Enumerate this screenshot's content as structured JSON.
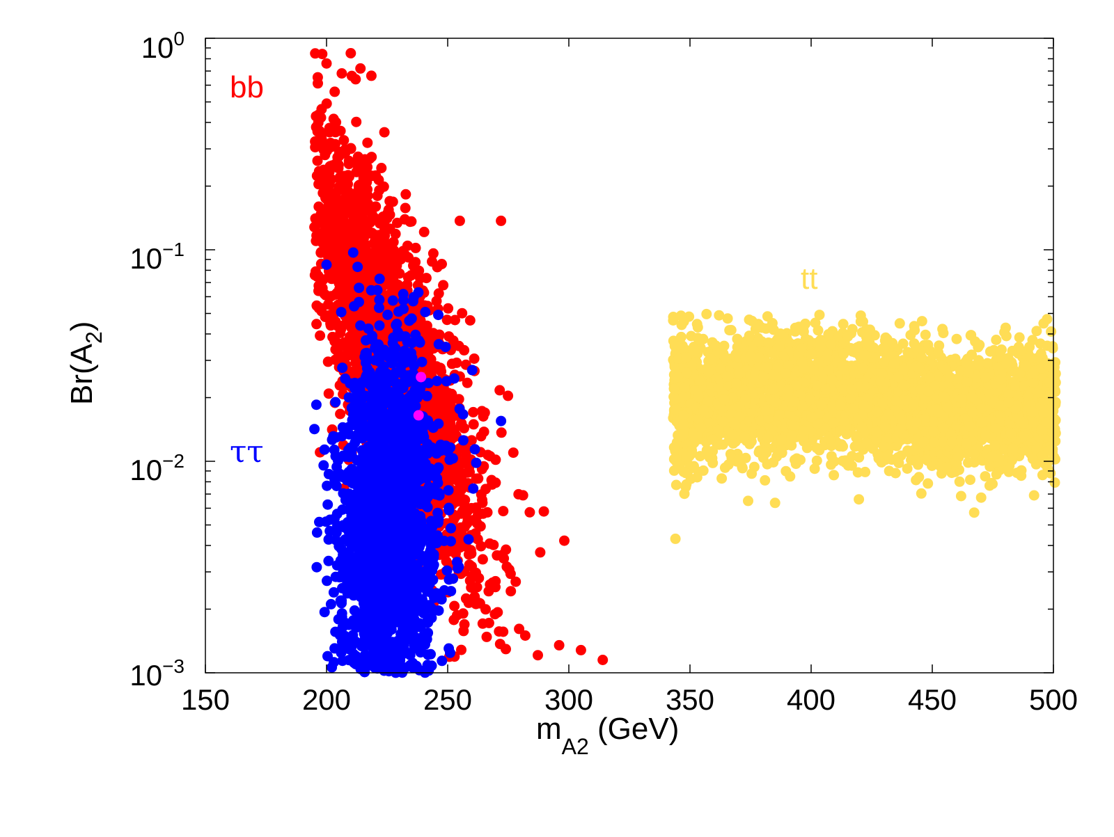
{
  "chart_data": {
    "type": "scatter",
    "title": "",
    "xlabel": {
      "main": "m",
      "sub": "A2",
      "suffix": " (GeV)"
    },
    "ylabel": {
      "main": "Br(A",
      "sub": "2",
      "suffix": ")"
    },
    "xlim": [
      150,
      500
    ],
    "ylim": [
      0.001,
      1
    ],
    "yscale": "log",
    "x_ticks": [
      "150",
      "200",
      "250",
      "300",
      "350",
      "400",
      "450",
      "500"
    ],
    "x_tick_values": [
      150,
      200,
      250,
      300,
      350,
      400,
      450,
      500
    ],
    "y_ticks": [
      {
        "value": 1,
        "base": "10",
        "exp": "0"
      },
      {
        "value": 0.1,
        "base": "10",
        "exp": "−1"
      },
      {
        "value": 0.01,
        "base": "10",
        "exp": "−2"
      },
      {
        "value": 0.001,
        "base": "10",
        "exp": "−3"
      }
    ],
    "series_labels": [
      {
        "text": "bb",
        "color": "#ff0000"
      },
      {
        "text": "ττ",
        "color": "#0000ff"
      },
      {
        "text": "tt",
        "color": "#ffdd55"
      }
    ],
    "series": [
      {
        "name": "bb",
        "color": "#ff0000",
        "generated": true,
        "seed": 11,
        "count": 2200,
        "x_center": 225,
        "x_spread": 9,
        "log_y_center": -1.45,
        "log_y_spread": 0.55,
        "slope_x_per_logy": -30,
        "region": {
          "x": [
            195,
            315
          ],
          "y": [
            0.001,
            0.9
          ]
        }
      },
      {
        "name": "ττ",
        "color": "#0000ff",
        "generated": true,
        "seed": 23,
        "count": 2000,
        "x_center": 225,
        "x_spread": 8,
        "log_y_center": -2.35,
        "log_y_spread": 0.42,
        "slope_x_per_logy": 0,
        "region": {
          "x": [
            195,
            272
          ],
          "y": [
            0.001,
            0.1
          ]
        }
      },
      {
        "name": "tt",
        "color": "#ffdd55",
        "generated": true,
        "seed": 37,
        "count": 3500,
        "x_range": [
          343,
          501
        ],
        "log_y_center": -1.72,
        "log_y_spread": 0.14,
        "region": {
          "x": [
            343,
            501
          ],
          "y": [
            0.004,
            0.05
          ]
        }
      }
    ],
    "highlight_points": [
      {
        "x": 239,
        "y": 0.025,
        "color": "#ff00ff"
      },
      {
        "x": 238,
        "y": 0.0165,
        "color": "#ff00ff"
      }
    ],
    "outlier_points": [
      {
        "x": 210,
        "y": 0.85,
        "series": "bb"
      },
      {
        "x": 200,
        "y": 0.76,
        "series": "bb"
      },
      {
        "x": 214,
        "y": 0.72,
        "series": "bb"
      },
      {
        "x": 212,
        "y": 0.64,
        "series": "bb"
      },
      {
        "x": 272,
        "y": 0.137,
        "series": "bb"
      },
      {
        "x": 255,
        "y": 0.137,
        "series": "bb"
      },
      {
        "x": 314,
        "y": 0.00115,
        "series": "bb"
      },
      {
        "x": 305,
        "y": 0.00128,
        "series": "bb"
      },
      {
        "x": 296,
        "y": 0.00135,
        "series": "bb"
      },
      {
        "x": 282,
        "y": 0.0015,
        "series": "bb"
      },
      {
        "x": 195,
        "y": 0.128,
        "series": "bb"
      },
      {
        "x": 272,
        "y": 0.0155,
        "series": "ττ"
      },
      {
        "x": 211,
        "y": 0.097,
        "series": "ττ"
      },
      {
        "x": 195,
        "y": 0.0142,
        "series": "ττ"
      },
      {
        "x": 200,
        "y": 0.085,
        "series": "ττ"
      },
      {
        "x": 203,
        "y": 0.0024,
        "series": "ττ"
      },
      {
        "x": 362,
        "y": 0.049,
        "series": "tt"
      },
      {
        "x": 466,
        "y": 0.0395,
        "series": "tt"
      },
      {
        "x": 344,
        "y": 0.0043,
        "series": "tt"
      },
      {
        "x": 492,
        "y": 0.0069,
        "series": "tt"
      },
      {
        "x": 374,
        "y": 0.0065,
        "series": "tt"
      }
    ]
  }
}
